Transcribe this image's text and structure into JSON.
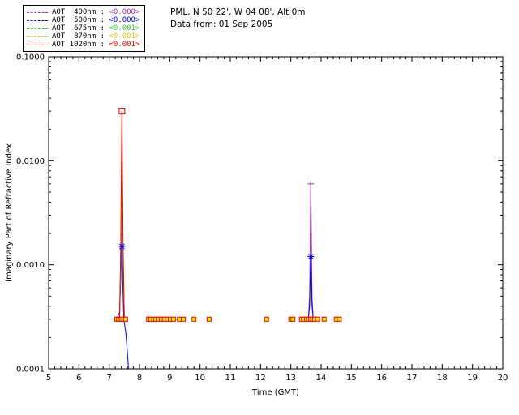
{
  "header": {
    "site": "PML, N 50 22', W 04 08', Alt 0m",
    "date": "Data from: 01 Sep 2005"
  },
  "legend": {
    "items": [
      {
        "label": "AOT  400nm :",
        "value": "<0.000>",
        "color": "#993399"
      },
      {
        "label": "AOT  500nm :",
        "value": "<0.000>",
        "color": "#0000EE"
      },
      {
        "label": "AOT  675nm :",
        "value": "<0.001>",
        "color": "#33CC33"
      },
      {
        "label": "AOT  870nm :",
        "value": "<0.001>",
        "color": "#DDCC00"
      },
      {
        "label": "AOT 1020nm :",
        "value": "<0.001>",
        "color": "#EE0000"
      }
    ]
  },
  "chart_data": {
    "type": "line",
    "title": "PML, N 50 22', W 04 08', Alt 0m",
    "subtitle": "Data from: 01 Sep 2005",
    "xlabel": "Time (GMT)",
    "ylabel": "Imaginary Part of Refractive Index",
    "xlim": [
      5,
      20
    ],
    "ylim": [
      0.0001,
      0.1
    ],
    "y_scale": "log",
    "grid": false,
    "x_ticks": [
      5,
      6,
      7,
      8,
      9,
      10,
      11,
      12,
      13,
      14,
      15,
      16,
      17,
      18,
      19,
      20
    ],
    "x_minor_step": 0.2,
    "y_ticks": [
      {
        "v": 0.1,
        "label": "0.1000"
      },
      {
        "v": 0.01,
        "label": "0.0100"
      },
      {
        "v": 0.001,
        "label": "0.0010"
      },
      {
        "v": 0.0001,
        "label": "0.0001"
      }
    ],
    "baseline_value": 0.0003,
    "common_segments": [
      [
        [
          8.3,
          0.0003
        ],
        [
          9.45,
          0.0003
        ]
      ],
      [
        [
          13.0,
          0.0003
        ],
        [
          13.07,
          0.0003
        ]
      ],
      [
        [
          14.5,
          0.0003
        ],
        [
          14.6,
          0.0003
        ]
      ]
    ],
    "series": [
      {
        "name": "AOT 400nm",
        "color": "#993399",
        "segments": [
          [
            [
              7.25,
              0.0003
            ],
            [
              7.34,
              0.0003
            ],
            [
              7.38,
              0.0008
            ],
            [
              7.42,
              0.004
            ],
            [
              7.46,
              0.0008
            ],
            [
              7.5,
              0.0003
            ],
            [
              7.56,
              0.0003
            ]
          ],
          [
            [
              13.35,
              0.0003
            ],
            [
              13.58,
              0.0003
            ],
            [
              13.62,
              0.0005
            ],
            [
              13.66,
              0.006
            ],
            [
              13.7,
              0.0005
            ],
            [
              13.74,
              0.0003
            ],
            [
              13.9,
              0.0003
            ]
          ]
        ]
      },
      {
        "name": "AOT 500nm",
        "color": "#0000EE",
        "segments": [
          [
            [
              7.25,
              0.0003
            ],
            [
              7.34,
              0.00035
            ],
            [
              7.42,
              0.0015
            ],
            [
              7.48,
              0.0003
            ],
            [
              7.55,
              0.00022
            ],
            [
              7.62,
              0.00012
            ],
            [
              7.68,
              6e-05
            ],
            [
              7.75,
              4e-05
            ]
          ],
          [
            [
              13.35,
              0.0003
            ],
            [
              13.58,
              0.0003
            ],
            [
              13.62,
              0.0004
            ],
            [
              13.66,
              0.0012
            ],
            [
              13.7,
              0.0004
            ],
            [
              13.74,
              0.0003
            ],
            [
              13.9,
              0.0003
            ]
          ]
        ]
      },
      {
        "name": "AOT 675nm",
        "color": "#33CC33",
        "segments": [
          [
            [
              7.25,
              0.0003
            ],
            [
              7.34,
              0.0003
            ],
            [
              7.38,
              0.001
            ],
            [
              7.42,
              0.011
            ],
            [
              7.46,
              0.001
            ],
            [
              7.5,
              0.0003
            ],
            [
              7.56,
              0.0003
            ]
          ],
          [
            [
              13.35,
              0.0003
            ],
            [
              13.9,
              0.0003
            ]
          ]
        ]
      },
      {
        "name": "AOT 870nm",
        "color": "#DDCC00",
        "segments": [
          [
            [
              7.25,
              0.0003
            ],
            [
              7.34,
              0.0003
            ],
            [
              7.38,
              0.0012
            ],
            [
              7.42,
              0.018
            ],
            [
              7.46,
              0.0012
            ],
            [
              7.5,
              0.0003
            ],
            [
              7.56,
              0.0003
            ]
          ],
          [
            [
              13.35,
              0.0003
            ],
            [
              13.9,
              0.0003
            ]
          ]
        ]
      },
      {
        "name": "AOT 1020nm",
        "color": "#EE0000",
        "segments": [
          [
            [
              7.25,
              0.0003
            ],
            [
              7.34,
              0.0003
            ],
            [
              7.38,
              0.0015
            ],
            [
              7.42,
              0.03
            ],
            [
              7.46,
              0.0015
            ],
            [
              7.5,
              0.0003
            ],
            [
              7.56,
              0.0003
            ]
          ],
          [
            [
              13.35,
              0.0003
            ],
            [
              13.9,
              0.0003
            ]
          ]
        ]
      }
    ],
    "baseline_markers": {
      "y": 0.0003,
      "fill": "#FFEE00",
      "stroke": "#EE0000",
      "times": [
        7.25,
        7.31,
        7.37,
        7.42,
        7.48,
        7.54,
        8.3,
        8.37,
        8.47,
        8.54,
        8.62,
        8.72,
        8.82,
        8.92,
        9.02,
        9.12,
        9.32,
        9.45,
        9.8,
        10.3,
        12.2,
        13.0,
        13.07,
        13.35,
        13.42,
        13.52,
        13.58,
        13.66,
        13.72,
        13.78,
        13.88,
        14.1,
        14.5,
        14.6
      ]
    },
    "peak_markers": [
      {
        "x": 7.42,
        "y": 0.03,
        "shape": "square",
        "color": "#EE0000"
      },
      {
        "x": 7.42,
        "y": 0.0015,
        "shape": "asterisk",
        "color": "#0000EE"
      },
      {
        "x": 13.66,
        "y": 0.006,
        "shape": "plus",
        "color": "#993399"
      },
      {
        "x": 13.66,
        "y": 0.0012,
        "shape": "asterisk",
        "color": "#0000EE"
      }
    ]
  }
}
